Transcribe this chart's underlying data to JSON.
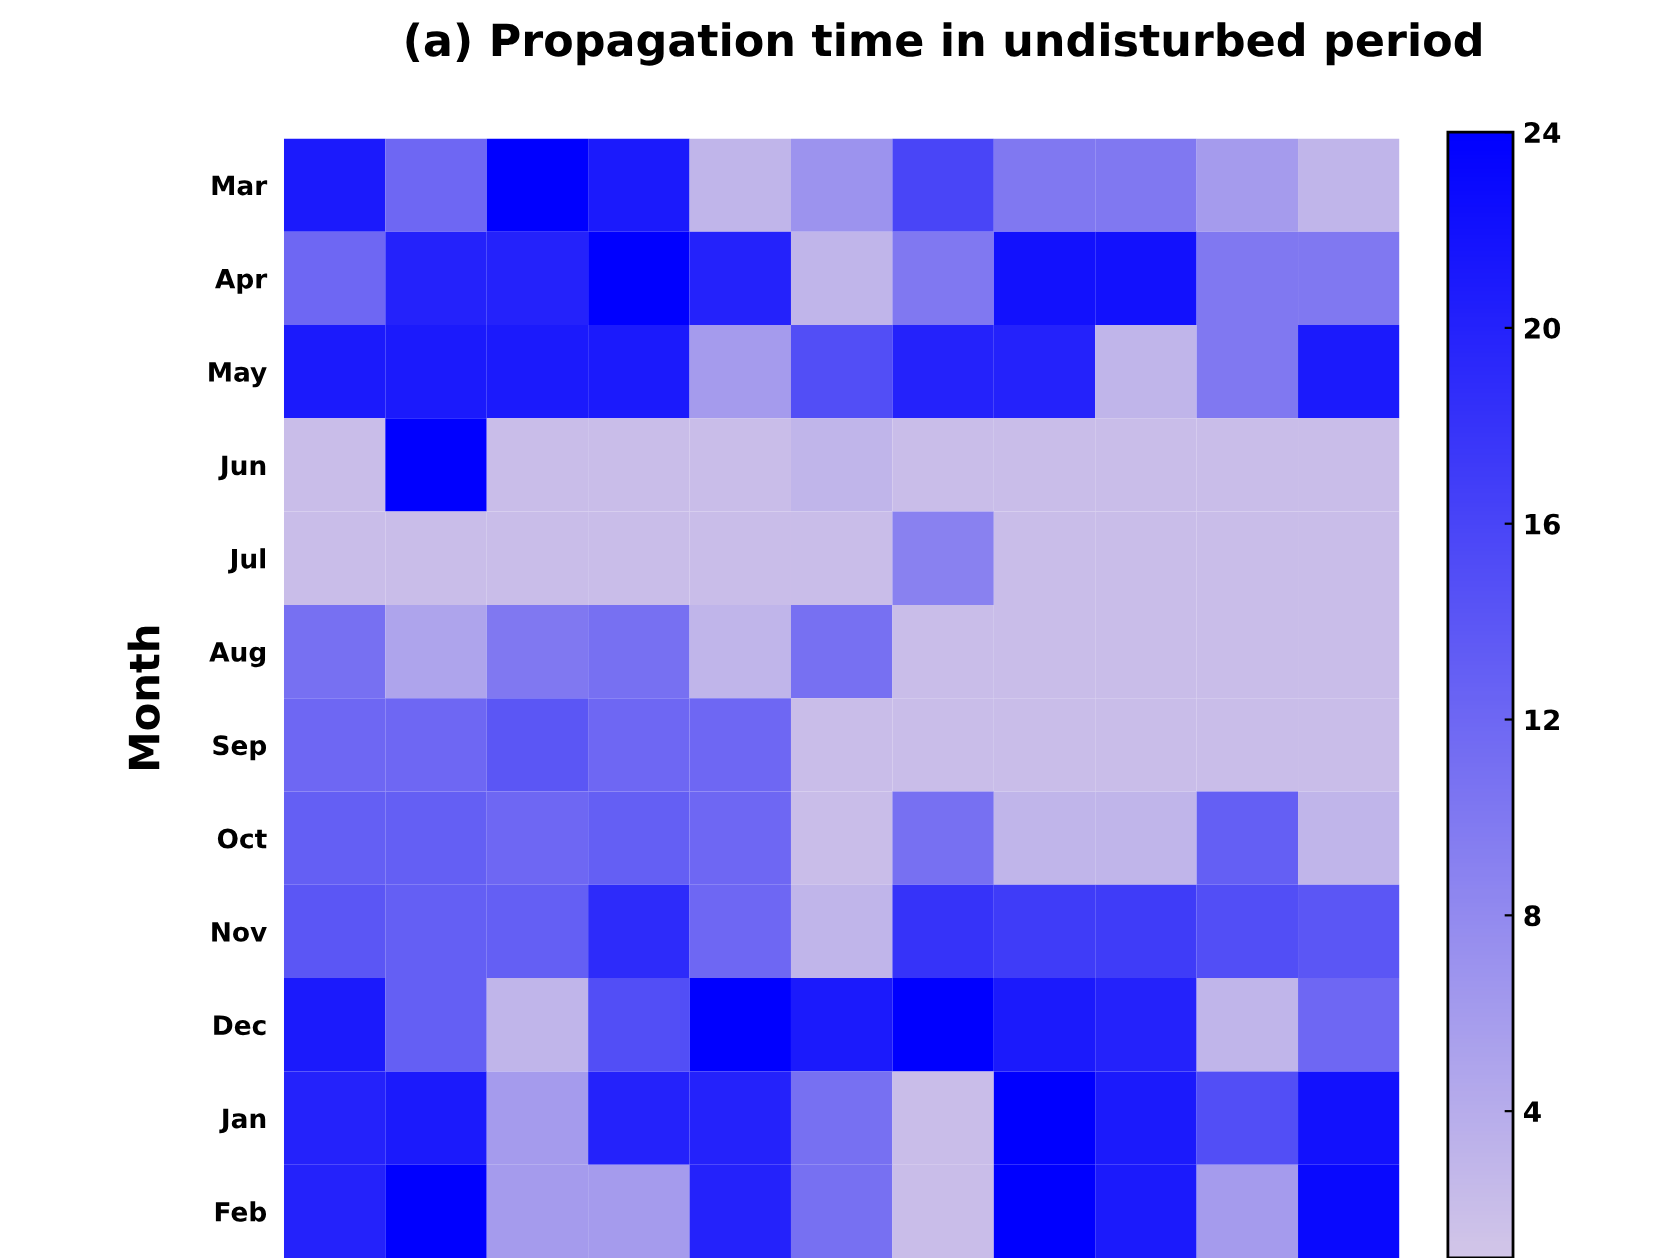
{
  "chart_data": {
    "type": "heatmap",
    "title": "(a) Propagation time in undisturbed period",
    "ylabel": "Month",
    "categories": [
      null,
      null,
      null,
      null,
      null,
      null,
      null,
      null,
      null,
      null,
      null
    ],
    "y_categories": [
      "Mar",
      "Apr",
      "May",
      "Jun",
      "Jul",
      "Aug",
      "Sep",
      "Oct",
      "Nov",
      "Dec",
      "Jan",
      "Feb"
    ],
    "cells": [
      [
        21,
        12,
        24,
        21,
        3,
        7,
        16,
        10,
        10,
        6,
        3
      ],
      [
        12,
        20,
        20,
        24,
        20,
        3,
        10,
        22,
        22,
        10,
        10
      ],
      [
        21,
        21,
        21,
        21,
        6,
        15,
        20,
        20,
        3,
        10,
        21
      ],
      [
        2,
        24,
        2,
        2,
        2,
        3,
        2,
        2,
        2,
        2,
        2
      ],
      [
        2,
        2,
        2,
        2,
        2,
        2,
        9,
        2,
        2,
        2,
        2
      ],
      [
        11,
        5,
        10,
        11,
        3,
        11,
        2,
        2,
        2,
        2,
        2
      ],
      [
        12,
        12,
        14,
        12,
        12,
        2,
        2,
        2,
        2,
        2,
        2
      ],
      [
        13,
        13,
        12,
        13,
        12,
        2,
        11,
        3,
        3,
        13,
        3
      ],
      [
        14,
        13,
        13,
        19,
        12,
        3,
        18,
        17,
        17,
        15,
        14
      ],
      [
        21,
        13,
        3,
        15,
        24,
        21,
        24,
        21,
        20,
        3,
        12
      ],
      [
        20,
        21,
        6,
        20,
        20,
        11,
        2,
        24,
        21,
        15,
        22
      ],
      [
        20,
        24,
        6,
        6,
        20,
        11,
        2,
        24,
        21,
        6,
        23
      ]
    ],
    "clim": [
      1,
      24
    ],
    "cticks": [
      4,
      8,
      12,
      16,
      20,
      24
    ],
    "tick_labels": "y"
  }
}
